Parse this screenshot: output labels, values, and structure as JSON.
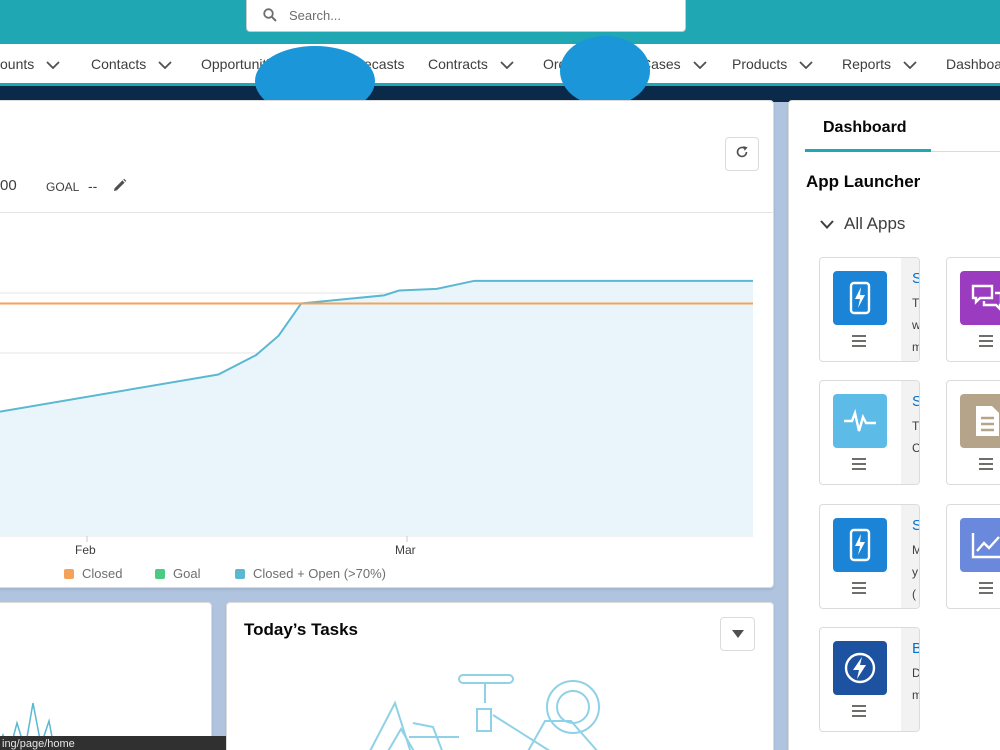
{
  "search": {
    "placeholder": "Search..."
  },
  "nav": {
    "items": [
      {
        "label": "ounts",
        "has_menu": true
      },
      {
        "label": "Contacts",
        "has_menu": true
      },
      {
        "label": "Opportunities",
        "has_menu": true
      },
      {
        "label": "Forecasts",
        "has_menu": false
      },
      {
        "label": "Contracts",
        "has_menu": true
      },
      {
        "label": "Orders",
        "has_menu": true
      },
      {
        "label": "Cases",
        "has_menu": true
      },
      {
        "label": "Products",
        "has_menu": true
      },
      {
        "label": "Reports",
        "has_menu": true
      },
      {
        "label": "Dashboa",
        "has_menu": false
      }
    ]
  },
  "performance": {
    "amount": "00",
    "goal_label": "GOAL",
    "goal_value": "--",
    "refresh_icon": "refresh-icon",
    "edit_icon": "pencil-icon"
  },
  "chart_data": {
    "type": "line",
    "x_ticks": [
      "Feb",
      "Mar"
    ],
    "series": [
      {
        "name": "Closed",
        "color": "#f4a25a",
        "points": [
          [
            0,
            0.72
          ],
          [
            1,
            0.72
          ]
        ]
      },
      {
        "name": "Goal",
        "color": "#4bca81",
        "points": []
      },
      {
        "name": "Closed + Open (>70%)",
        "color": "#5bb8d1",
        "fill": "#eaf5fb",
        "points": [
          [
            0,
            0.385
          ],
          [
            0.29,
            0.5
          ],
          [
            0.34,
            0.56
          ],
          [
            0.37,
            0.62
          ],
          [
            0.4,
            0.72
          ],
          [
            0.51,
            0.745
          ],
          [
            0.53,
            0.76
          ],
          [
            0.58,
            0.765
          ],
          [
            0.63,
            0.79
          ],
          [
            1,
            0.79
          ]
        ]
      }
    ],
    "legend": [
      "Closed",
      "Goal",
      "Closed + Open (>70%)"
    ],
    "grid": true
  },
  "tasks": {
    "title": "Today’s Tasks",
    "dropdown_icon": "caret-down-icon"
  },
  "status_bar": {
    "url": "ing/page/home"
  },
  "sidebar": {
    "tab": "Dashboard",
    "app_launcher_title": "App Launcher",
    "all_apps_label": "All Apps",
    "tiles": [
      {
        "col": 0,
        "row": 0,
        "icon": "lightning-phone-icon",
        "color": "#1b84d6",
        "lines": [
          "S",
          "T",
          "w",
          "m"
        ]
      },
      {
        "col": 1,
        "row": 0,
        "icon": "chat-icon",
        "color": "#9b3bc0",
        "lines": []
      },
      {
        "col": 0,
        "row": 1,
        "icon": "pulse-icon",
        "color": "#5dbbe7",
        "lines": [
          "S",
          "T",
          "C"
        ]
      },
      {
        "col": 1,
        "row": 1,
        "icon": "document-icon",
        "color": "#b5a48a",
        "lines": []
      },
      {
        "col": 0,
        "row": 2,
        "icon": "lightning-phone-icon",
        "color": "#1b84d6",
        "lines": [
          "S",
          "M",
          "y",
          "("
        ]
      },
      {
        "col": 1,
        "row": 2,
        "icon": "line-chart-icon",
        "color": "#6a89dc",
        "lines": []
      },
      {
        "col": 0,
        "row": 3,
        "icon": "lightning-circle-icon",
        "color": "#1d52a0",
        "lines": [
          "B",
          "D",
          "m"
        ]
      }
    ]
  }
}
